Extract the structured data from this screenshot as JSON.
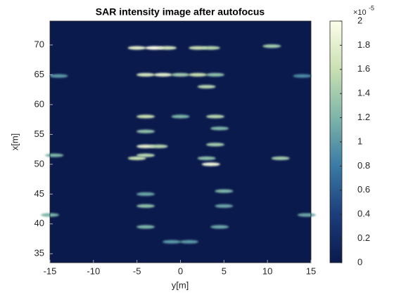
{
  "chart_data": {
    "type": "image",
    "title": "SAR intensity image after autofocus",
    "xlabel": "y[m]",
    "ylabel": "x[m]",
    "xlim": [
      -15,
      15
    ],
    "ylim": [
      33.5,
      74
    ],
    "xticks": [
      -15,
      -10,
      -5,
      0,
      5,
      10,
      15
    ],
    "yticks": [
      35,
      40,
      45,
      50,
      55,
      60,
      65,
      70
    ],
    "background": "#0b1a4c",
    "colormap": [
      "#0b1a4c",
      "#1c3d7c",
      "#3a7aa4",
      "#7db5a9",
      "#c9e0b2",
      "#fdfdea"
    ],
    "clim": [
      0,
      2e-05
    ],
    "cticks": [
      {
        "value": 0,
        "label": "0"
      },
      {
        "value": 2e-06,
        "label": "0.2"
      },
      {
        "value": 4e-06,
        "label": "0.4"
      },
      {
        "value": 6e-06,
        "label": "0.6"
      },
      {
        "value": 8e-06,
        "label": "0.8"
      },
      {
        "value": 1e-05,
        "label": "1"
      },
      {
        "value": 1.2e-05,
        "label": "1.2"
      },
      {
        "value": 1.4e-05,
        "label": "1.4"
      },
      {
        "value": 1.6e-05,
        "label": "1.6"
      },
      {
        "value": 1.8e-05,
        "label": "1.8"
      },
      {
        "value": 2e-05,
        "label": "2"
      }
    ],
    "colorbar_multiplier": "×10",
    "colorbar_exponent": "-5",
    "spots": {
      "x": [
        -5,
        -3,
        -1.5,
        2,
        3.5,
        10.5,
        -4,
        -2,
        0,
        2,
        4,
        -14,
        14,
        3,
        -4,
        0,
        4,
        -4,
        4.5,
        -4,
        -2.5,
        4,
        -5,
        -4,
        3.5,
        11.5,
        -14.5,
        3,
        -4,
        5,
        -4,
        5,
        -15,
        14.5,
        -4,
        4.5,
        -1,
        1
      ],
      "y": [
        69.5,
        69.5,
        69.5,
        69.5,
        69.5,
        69.8,
        65,
        65,
        65,
        65,
        65,
        64.8,
        64.8,
        63,
        58,
        58,
        58,
        55.5,
        56,
        53,
        53,
        53.3,
        51,
        51.5,
        50,
        51,
        51.5,
        51,
        45,
        45.5,
        43,
        43,
        41.5,
        41.5,
        39.5,
        39.5,
        37,
        37
      ],
      "values": [
        1.8e-05,
        2e-05,
        1.7e-05,
        1.6e-05,
        1.5e-05,
        1.4e-05,
        1.7e-05,
        1.8e-05,
        1.4e-05,
        1.6e-05,
        1.3e-05,
        1e-05,
        9e-06,
        1.5e-05,
        1.6e-05,
        1.2e-05,
        1.5e-05,
        1.3e-05,
        1.2e-05,
        1.8e-05,
        1.5e-05,
        1.4e-05,
        1.6e-05,
        1.5e-05,
        1.9e-05,
        1.4e-05,
        1.2e-05,
        1.3e-05,
        1.1e-05,
        1.2e-05,
        1.3e-05,
        1.1e-05,
        1.2e-05,
        1.1e-05,
        1.2e-05,
        1.1e-05,
        1e-05,
        1e-05
      ]
    }
  }
}
